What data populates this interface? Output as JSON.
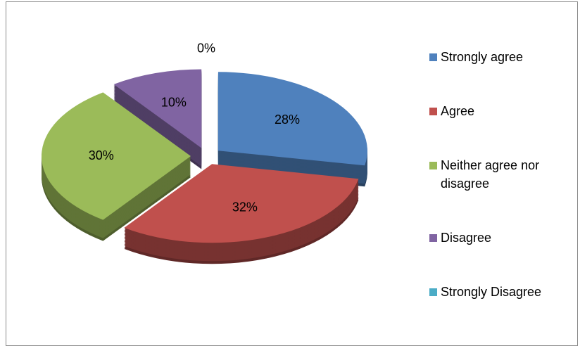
{
  "chart_data": {
    "type": "pie",
    "categories": [
      "Strongly agree",
      "Agree",
      "Neither agree nor disagree",
      "Disagree",
      "Strongly Disagree"
    ],
    "values": [
      28,
      32,
      30,
      10,
      0
    ],
    "value_labels": [
      "28%",
      "32%",
      "30%",
      "10%",
      "0%"
    ],
    "colors": [
      "#4f81bd",
      "#c0504d",
      "#9bbb59",
      "#8064a2",
      "#4bacc6"
    ],
    "legend": "right"
  }
}
